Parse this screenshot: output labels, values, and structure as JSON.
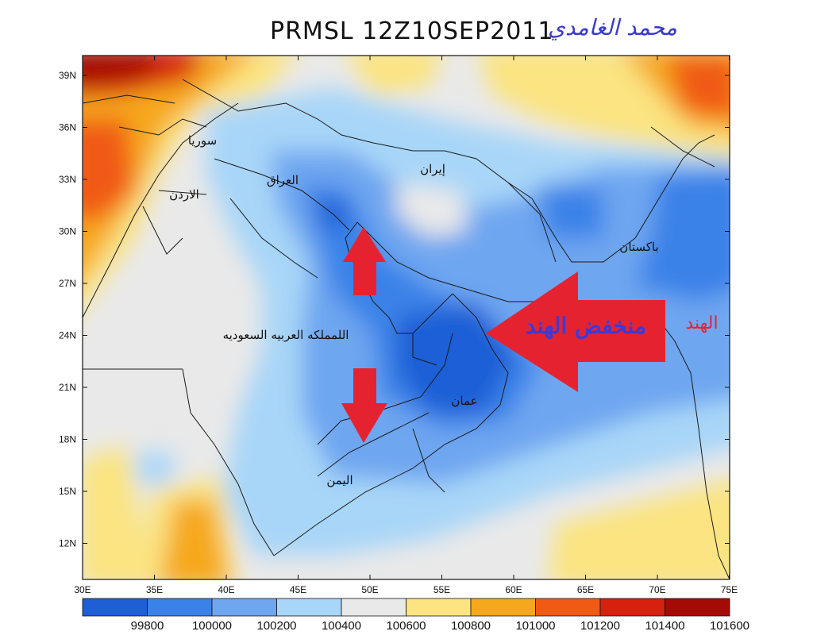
{
  "title": "PRMSL 12Z10SEP2011",
  "author": "محمد الغامدي",
  "lat_ticks": [
    "39N",
    "36N",
    "33N",
    "30N",
    "27N",
    "24N",
    "21N",
    "18N",
    "15N",
    "12N"
  ],
  "lon_ticks": [
    "30E",
    "35E",
    "40E",
    "45E",
    "50E",
    "55E",
    "60E",
    "65E",
    "70E",
    "75E"
  ],
  "legend": {
    "colors": [
      "#1e5fd6",
      "#3a82e8",
      "#6ea6f0",
      "#a8d6f8",
      "#e9e9e9",
      "#fbe481",
      "#f6a81c",
      "#f05a14",
      "#d8200e",
      "#a50a06"
    ],
    "labels": [
      "99800",
      "100000",
      "100200",
      "100400",
      "100600",
      "100800",
      "101000",
      "101200",
      "101400",
      "101600"
    ]
  },
  "map_labels": {
    "syria": "سوريا",
    "jordan": "الاردن",
    "iraq": "العراق",
    "iran": "إيران",
    "pakistan": "باكستان",
    "saudi": "اللمملكه العربيه السعوديه",
    "oman": "عمان",
    "yemen": "اليمن",
    "india": "الهند",
    "india_low": "منخفض الهند"
  }
}
